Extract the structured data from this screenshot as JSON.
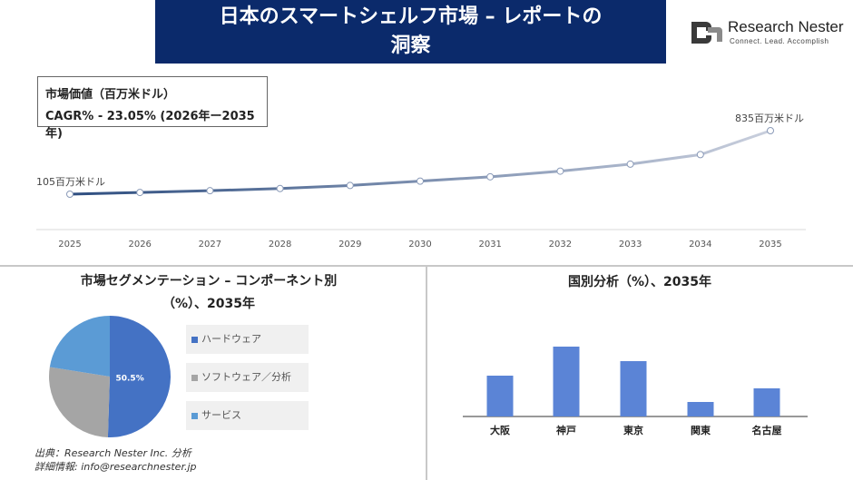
{
  "header": {
    "title_line1": "日本のスマートシェルフ市場 – レポートの",
    "title_line2": "洞察"
  },
  "logo": {
    "name": "Research Nester",
    "tagline": "Connect. Lead. Accomplish"
  },
  "market_box": {
    "line1": "市場価値（百万米ドル）",
    "line2": "CAGR% - 23.05% (2026年ー2035年)"
  },
  "segment": {
    "title_line1": "市場セグメンテーション – コンポーネント別",
    "title_line2": "（%）、2035年"
  },
  "country": {
    "title": "国別分析（%）、2035年"
  },
  "source": {
    "line1": "出典：Research Nester Inc. 分析",
    "line2": "詳細情報: info@researchnester.jp"
  },
  "chart_data": [
    {
      "type": "line",
      "x": [
        "2025",
        "2026",
        "2027",
        "2028",
        "2029",
        "2030",
        "2031",
        "2032",
        "2033",
        "2034",
        "2035"
      ],
      "values": [
        105,
        125,
        145,
        170,
        205,
        255,
        305,
        370,
        450,
        560,
        835
      ],
      "start_label": "105百万米ドル",
      "end_label": "835百万米ドル",
      "color_start": "#2e4e80",
      "color_end": "#c9cfdd"
    },
    {
      "type": "pie",
      "categories": [
        "ハードウェア",
        "ソフトウェア／分析",
        "サービス"
      ],
      "values": [
        50.5,
        27,
        22.5
      ],
      "colors": [
        "#4472c4",
        "#a5a5a5",
        "#5b9bd5"
      ],
      "data_labels": [
        "50.5%",
        "",
        ""
      ]
    },
    {
      "type": "bar",
      "categories": [
        "大阪",
        "神戸",
        "東京",
        "関東",
        "名古屋"
      ],
      "values": [
        45,
        77,
        61,
        16,
        31
      ],
      "color": "#5b84d6"
    }
  ]
}
